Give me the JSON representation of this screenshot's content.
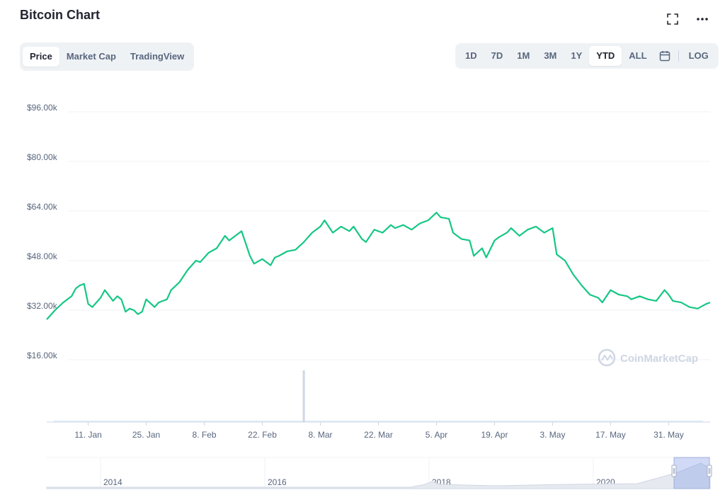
{
  "title": "Bitcoin Chart",
  "header_icons": [
    "expand-icon",
    "more-icon"
  ],
  "view_tabs": [
    {
      "label": "Price",
      "active": true
    },
    {
      "label": "Market Cap",
      "active": false
    },
    {
      "label": "TradingView",
      "active": false
    }
  ],
  "range_tabs": [
    {
      "label": "1D",
      "active": false
    },
    {
      "label": "7D",
      "active": false
    },
    {
      "label": "1M",
      "active": false
    },
    {
      "label": "3M",
      "active": false
    },
    {
      "label": "1Y",
      "active": false
    },
    {
      "label": "YTD",
      "active": true
    },
    {
      "label": "ALL",
      "active": false
    }
  ],
  "log_label": "LOG",
  "watermark": "CoinMarketCap",
  "colors": {
    "line": "#16c784",
    "grid": "#eff2f5",
    "volume": "#cfd6e4",
    "text": "#58667e"
  },
  "chart_data": {
    "type": "line",
    "title": "",
    "xlabel": "",
    "ylabel": "",
    "y_ticks": [
      "$96.00k",
      "$80.00k",
      "$64.00k",
      "$48.00k",
      "$32.00k",
      "$16.00k"
    ],
    "y_tick_values": [
      96000,
      80000,
      64000,
      48000,
      32000,
      16000
    ],
    "ylim": [
      16000,
      96000
    ],
    "x_ticks": [
      "11. Jan",
      "25. Jan",
      "8. Feb",
      "22. Feb",
      "8. Mar",
      "22. Mar",
      "5. Apr",
      "19. Apr",
      "3. May",
      "17. May",
      "31. May"
    ],
    "x_tick_days": [
      11,
      25,
      39,
      53,
      67,
      81,
      95,
      109,
      123,
      137,
      151
    ],
    "xlim": [
      1,
      161
    ],
    "grid": true,
    "legend": "none",
    "series": [
      {
        "x": [
          1,
          3,
          5,
          7,
          8,
          9,
          10,
          11,
          12,
          14,
          15,
          17,
          18,
          19,
          20,
          21,
          22,
          23,
          24,
          25,
          27,
          28,
          30,
          31,
          33,
          35,
          37,
          38,
          40,
          42,
          44,
          45,
          47,
          48,
          50,
          51,
          53,
          55,
          56,
          57,
          59,
          61,
          63,
          65,
          67,
          68,
          70,
          72,
          74,
          75,
          77,
          78,
          80,
          82,
          84,
          85,
          87,
          89,
          91,
          93,
          95,
          96,
          98,
          99,
          101,
          103,
          104,
          106,
          107,
          109,
          110,
          112,
          113,
          115,
          117,
          119,
          121,
          123,
          124,
          126,
          128,
          130,
          132,
          134,
          135,
          137,
          139,
          141,
          142,
          144,
          146,
          148,
          150,
          151,
          152,
          154,
          156,
          158,
          160,
          161
        ],
        "y": [
          29000,
          32000,
          34500,
          36500,
          39000,
          40000,
          40500,
          34000,
          33000,
          36000,
          38500,
          35000,
          36500,
          35500,
          31500,
          32500,
          32000,
          30700,
          31500,
          35500,
          33000,
          34500,
          35500,
          38500,
          41000,
          45000,
          48000,
          47500,
          50500,
          52000,
          56000,
          54500,
          56500,
          57500,
          49500,
          47000,
          48500,
          46500,
          49000,
          49500,
          51000,
          51500,
          54000,
          57000,
          59000,
          61000,
          57000,
          59000,
          57500,
          59000,
          55000,
          54000,
          58000,
          57000,
          59500,
          58500,
          59500,
          58000,
          60000,
          61000,
          63500,
          62000,
          61500,
          57000,
          55000,
          54500,
          49500,
          52000,
          49000,
          54500,
          55500,
          57000,
          58500,
          56000,
          58000,
          59000,
          57000,
          58500,
          50000,
          48000,
          43500,
          40000,
          37000,
          36000,
          34500,
          38500,
          37000,
          36500,
          35500,
          36500,
          35500,
          35000,
          38500,
          37000,
          35000,
          34500,
          33000,
          32500,
          34000,
          34500
        ]
      }
    ],
    "volume_spike": {
      "x": 63,
      "label": ""
    },
    "navigator": {
      "labels": [
        "2014",
        "2016",
        "2018",
        "2020"
      ]
    }
  }
}
